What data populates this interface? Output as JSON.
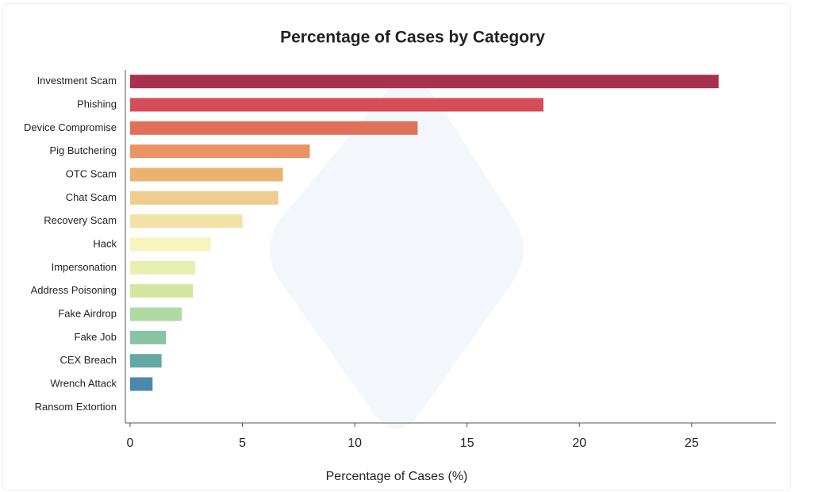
{
  "chart_data": {
    "type": "bar",
    "orientation": "horizontal",
    "title": "Percentage of Cases by Category",
    "x_label": "Percentage of Cases (%)",
    "categories": [
      "Investment Scam",
      "Phishing",
      "Device Compromise",
      "Pig Butchering",
      "OTC Scam",
      "Chat Scam",
      "Recovery Scam",
      "Hack",
      "Impersonation",
      "Address Poisoning",
      "Fake Airdrop",
      "Fake Job",
      "CEX Breach",
      "Wrench Attack",
      "Ransom Extortion"
    ],
    "values": [
      26.2,
      18.4,
      12.8,
      8.0,
      6.8,
      6.6,
      5.0,
      3.6,
      2.9,
      2.8,
      2.3,
      1.6,
      1.4,
      1.0,
      0
    ],
    "colors": [
      "#a8324e",
      "#d44e57",
      "#e0705a",
      "#ea9463",
      "#ecb26f",
      "#eecd8e",
      "#f3e2a6",
      "#f7f5bd",
      "#e8f0b0",
      "#d3e6a0",
      "#b0d9a2",
      "#88c4a2",
      "#64a8a4",
      "#4a88ad",
      "#5e4fa2"
    ],
    "xlim": [
      0,
      28.75
    ],
    "xticks": [
      0,
      5,
      10,
      15,
      20,
      25
    ]
  }
}
